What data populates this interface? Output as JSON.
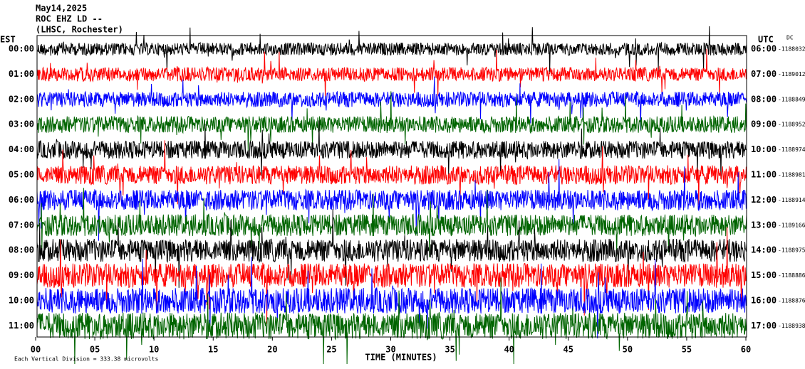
{
  "header": {
    "date": "May14,2025",
    "station": "ROC EHZ LD --",
    "location": "(LHSC, Rochester)"
  },
  "left_axis_label": "EST",
  "right_axis_label": "UTC",
  "dc_label": "DC",
  "rows": [
    {
      "est": "00:00",
      "utc": "06:00",
      "dc": "-1188032",
      "color": "#000000"
    },
    {
      "est": "01:00",
      "utc": "07:00",
      "dc": "-1189012",
      "color": "#ff0000"
    },
    {
      "est": "02:00",
      "utc": "08:00",
      "dc": "-1188849",
      "color": "#0000ff"
    },
    {
      "est": "03:00",
      "utc": "09:00",
      "dc": "-1188952",
      "color": "#006400"
    },
    {
      "est": "04:00",
      "utc": "10:00",
      "dc": "-1188974",
      "color": "#000000"
    },
    {
      "est": "05:00",
      "utc": "11:00",
      "dc": "-1188981",
      "color": "#ff0000"
    },
    {
      "est": "06:00",
      "utc": "12:00",
      "dc": "-1188914",
      "color": "#0000ff"
    },
    {
      "est": "07:00",
      "utc": "13:00",
      "dc": "-1189166",
      "color": "#006400"
    },
    {
      "est": "08:00",
      "utc": "14:00",
      "dc": "-1188975",
      "color": "#000000"
    },
    {
      "est": "09:00",
      "utc": "15:00",
      "dc": "-1188886",
      "color": "#ff0000"
    },
    {
      "est": "10:00",
      "utc": "16:00",
      "dc": "-1188876",
      "color": "#0000ff"
    },
    {
      "est": "11:00",
      "utc": "17:00",
      "dc": "-1188938",
      "color": "#006400"
    }
  ],
  "xlim": [
    0,
    60
  ],
  "xticks": [
    {
      "value": 0,
      "label": "00"
    },
    {
      "value": 5,
      "label": "05"
    },
    10,
    15,
    20,
    25,
    30,
    35,
    40,
    45,
    50,
    55,
    60
  ],
  "x_axis_label": "TIME (MINUTES)",
  "footnote": "Each Vertical Division =  333.38 microvolts"
}
